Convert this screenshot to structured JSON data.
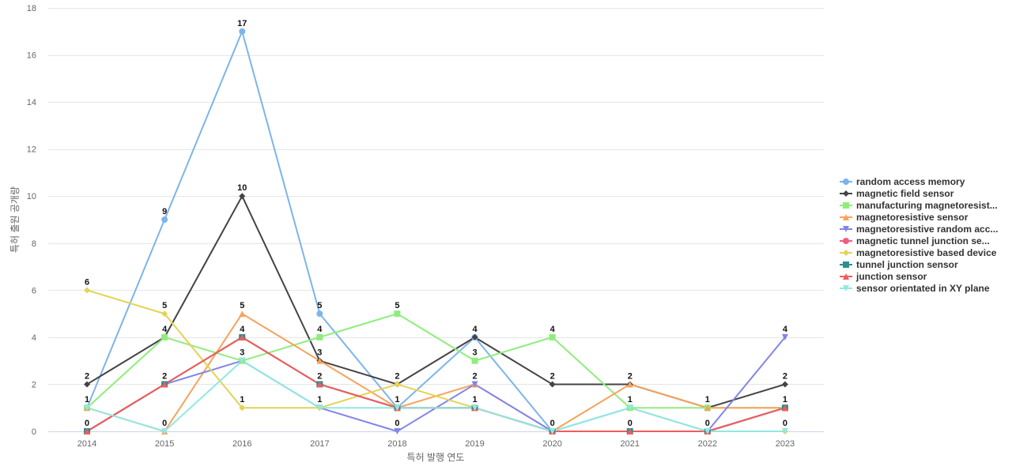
{
  "chart_data": {
    "type": "line",
    "title": "",
    "xlabel": "특허 발행 연도",
    "ylabel": "특허 출원 공개량",
    "ylim": [
      0,
      18
    ],
    "yticks": [
      0,
      2,
      4,
      6,
      8,
      10,
      12,
      14,
      16,
      18
    ],
    "grid": true,
    "legend_position": "right",
    "categories": [
      "2014",
      "2015",
      "2016",
      "2017",
      "2018",
      "2019",
      "2020",
      "2021",
      "2022",
      "2023"
    ],
    "series": [
      {
        "name": "random access memory",
        "color": "#7cb5ec",
        "marker": "circle",
        "values": [
          1,
          9,
          17,
          5,
          1,
          4,
          0,
          1,
          0,
          1
        ]
      },
      {
        "name": "magnetic field sensor",
        "color": "#434348",
        "marker": "diamond",
        "values": [
          2,
          4,
          10,
          3,
          2,
          4,
          2,
          2,
          1,
          2
        ]
      },
      {
        "name": "manufacturing magnetoresist...",
        "color": "#90ed7d",
        "marker": "square",
        "values": [
          1,
          4,
          3,
          4,
          5,
          3,
          4,
          1,
          1,
          1
        ]
      },
      {
        "name": "magnetoresistive sensor",
        "color": "#f7a35c",
        "marker": "triangle",
        "values": [
          1,
          0,
          5,
          3,
          1,
          2,
          0,
          2,
          1,
          1
        ]
      },
      {
        "name": "magnetoresistive random acc...",
        "color": "#8085e9",
        "marker": "triangle-down",
        "values": [
          0,
          2,
          3,
          1,
          0,
          2,
          0,
          0,
          0,
          4
        ]
      },
      {
        "name": "magnetic tunnel junction se...",
        "color": "#f15c80",
        "marker": "circle",
        "values": [
          0,
          2,
          4,
          2,
          1,
          1,
          0,
          0,
          0,
          1
        ]
      },
      {
        "name": "magnetoresistive based device",
        "color": "#e4d354",
        "marker": "diamond",
        "values": [
          6,
          5,
          1,
          1,
          2,
          1,
          0,
          0,
          0,
          0
        ]
      },
      {
        "name": "tunnel junction sensor",
        "color": "#2b908f",
        "marker": "square",
        "values": [
          0,
          2,
          4,
          2,
          1,
          1,
          0,
          0,
          0,
          1
        ]
      },
      {
        "name": "junction sensor",
        "color": "#f45b5b",
        "marker": "triangle",
        "values": [
          0,
          2,
          4,
          2,
          1,
          1,
          0,
          0,
          0,
          1
        ]
      },
      {
        "name": "sensor orientated in XY plane",
        "color": "#91e8e1",
        "marker": "triangle-down",
        "values": [
          1,
          0,
          3,
          1,
          1,
          1,
          0,
          1,
          0,
          0
        ]
      }
    ],
    "data_labels": [
      {
        "category": "2014",
        "values": [
          0,
          1,
          2,
          6
        ]
      },
      {
        "category": "2015",
        "values": [
          0,
          2,
          4,
          5,
          9
        ]
      },
      {
        "category": "2016",
        "values": [
          1,
          3,
          4,
          5,
          10,
          17
        ]
      },
      {
        "category": "2017",
        "values": [
          1,
          2,
          3,
          4,
          5
        ]
      },
      {
        "category": "2018",
        "values": [
          0,
          1,
          2,
          5
        ]
      },
      {
        "category": "2019",
        "values": [
          1,
          2,
          3,
          4
        ]
      },
      {
        "category": "2020",
        "values": [
          0,
          2,
          4
        ]
      },
      {
        "category": "2021",
        "values": [
          0,
          1,
          2
        ]
      },
      {
        "category": "2022",
        "values": [
          0,
          1
        ]
      },
      {
        "category": "2023",
        "values": [
          0,
          1,
          2,
          4
        ]
      }
    ]
  }
}
